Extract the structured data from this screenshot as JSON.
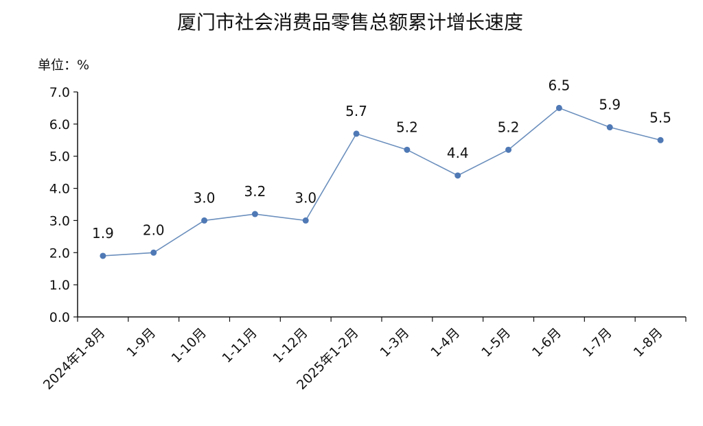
{
  "chart_data": {
    "type": "line",
    "title": "厦门市社会消费品零售总额累计增长速度",
    "unit_label": "单位：%",
    "categories": [
      "2024年1-8月",
      "1-9月",
      "1-10月",
      "1-11月",
      "1-12月",
      "2025年1-2月",
      "1-3月",
      "1-4月",
      "1-5月",
      "1-6月",
      "1-7月",
      "1-8月"
    ],
    "values": [
      1.9,
      2.0,
      3.0,
      3.2,
      3.0,
      5.7,
      5.2,
      4.4,
      5.2,
      6.5,
      5.9,
      5.5
    ],
    "data_labels": [
      "1.9",
      "2.0",
      "3.0",
      "3.2",
      "3.0",
      "5.7",
      "5.2",
      "4.4",
      "5.2",
      "6.5",
      "5.9",
      "5.5"
    ],
    "ylim": [
      0,
      7
    ],
    "yticks": [
      "0.0",
      "1.0",
      "2.0",
      "3.0",
      "4.0",
      "5.0",
      "6.0",
      "7.0"
    ],
    "grid": false,
    "line_color": "#6b8fbd",
    "marker_color": "#4f79b5"
  }
}
